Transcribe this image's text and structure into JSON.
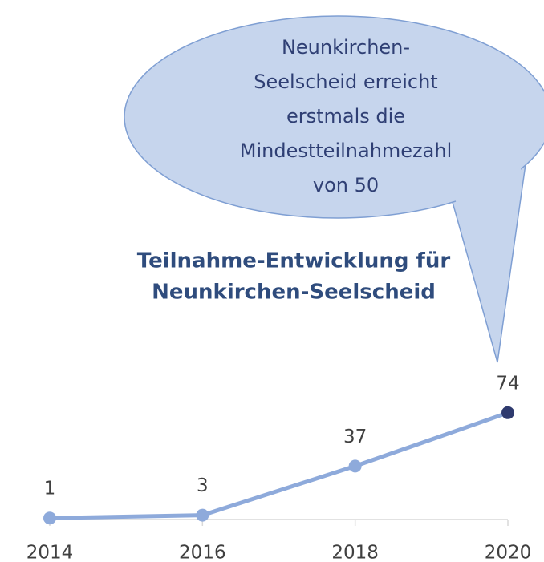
{
  "chart_data": {
    "type": "line",
    "title": [
      "Teilnahme-Entwicklung für",
      "Neunkirchen-Seelscheid"
    ],
    "annotation": [
      "Neunkirchen-",
      "Seelscheid erreicht",
      "erstmals die",
      "Mindestteilnahmezahl",
      "von 50"
    ],
    "categories": [
      "2014",
      "2016",
      "2018",
      "2020"
    ],
    "series": [
      {
        "name": "Teilnahme",
        "color": "#8eaadb",
        "values": [
          1,
          3,
          37,
          74
        ],
        "marker_colors": [
          "#8eaadb",
          "#8eaadb",
          "#8eaadb",
          "#2e3a6e"
        ]
      }
    ],
    "ylim": [
      0,
      80
    ],
    "grid": false
  }
}
